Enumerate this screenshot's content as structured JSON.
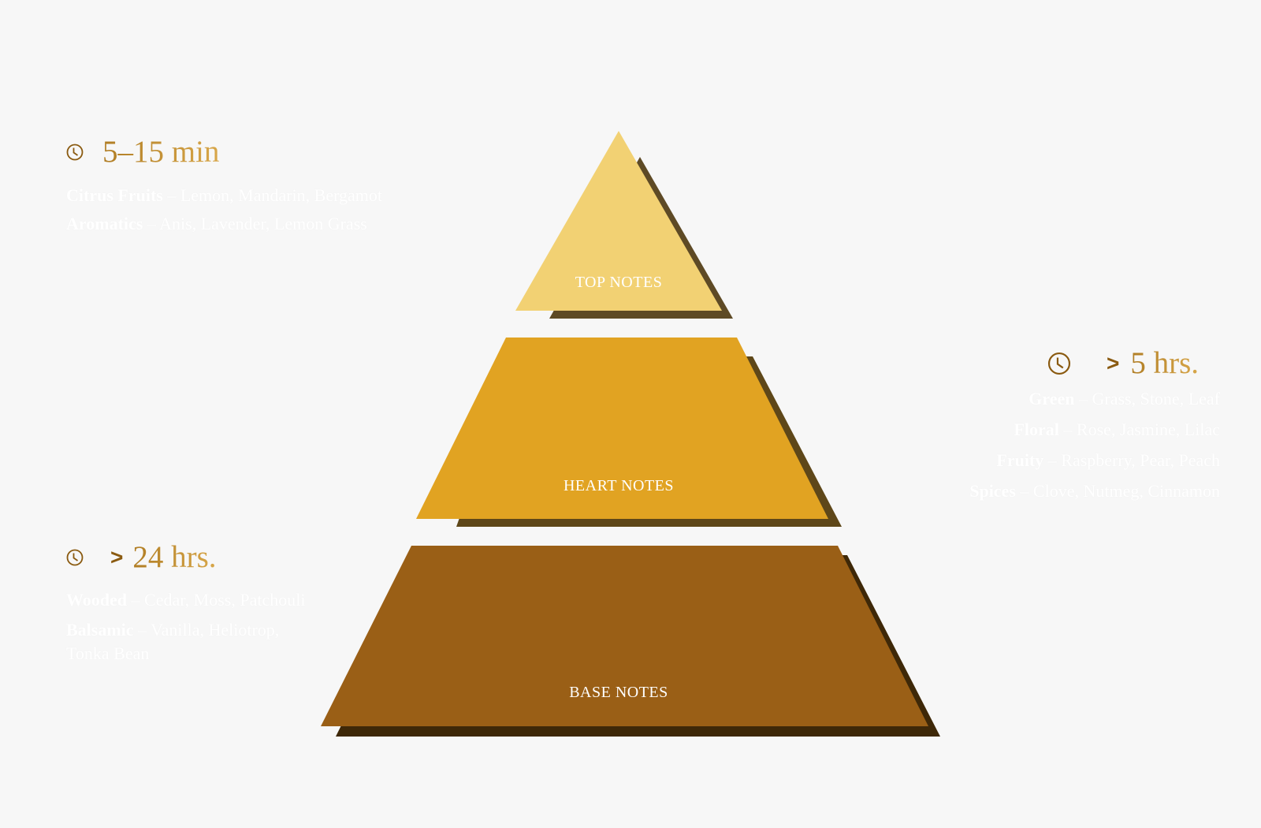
{
  "tiers": {
    "top": {
      "label": "TOP NOTES",
      "color": "#f2d173",
      "shadow": "#5e4a25"
    },
    "heart": {
      "label": "HEART NOTES",
      "color": "#e1a322",
      "shadow": "#5e4719"
    },
    "base": {
      "label": "BASE NOTES",
      "color": "#9a5f16",
      "shadow": "#3e2808"
    }
  },
  "top_time": {
    "value": "5–15 min",
    "icon": "clock-icon"
  },
  "heart_time": {
    "prefix": ">",
    "value": "5 hrs.",
    "icon": "clock-icon"
  },
  "base_time": {
    "prefix": ">",
    "value": "24 hrs.",
    "icon": "clock-icon"
  },
  "top_notes": [
    {
      "category": "Citrus Fruits",
      "sep": " – ",
      "items": "Lemon, Mandarin, Bergamot"
    },
    {
      "category": "Aromatics",
      "sep": " – ",
      "items": "Anis, Lavender, Lemon Grass"
    }
  ],
  "heart_notes": [
    {
      "category": "Green",
      "sep": " – ",
      "items": "Grass, Stone, Leaf"
    },
    {
      "category": "Floral",
      "sep": " – ",
      "items": "Rose, Jasmine, Lilac"
    },
    {
      "category": "Fruity",
      "sep": " – ",
      "items": "Raspberry, Pear, Peach"
    },
    {
      "category": "Spices",
      "sep": " – ",
      "items": "Clove, Nutmeg, Cinnamon"
    }
  ],
  "base_notes": [
    {
      "category": "Wooded",
      "sep": " – ",
      "items": "Cedar, Moss, Patchouli"
    },
    {
      "category": "Balsamic",
      "sep": " – ",
      "items": "Vanilla, Heliotrop,"
    },
    {
      "category": "",
      "sep": "",
      "items": "Tonka Bean"
    }
  ],
  "colors": {
    "accent_gold": "#b98a2c",
    "icon_brown": "#8a5a10",
    "background": "#f7f7f7"
  }
}
